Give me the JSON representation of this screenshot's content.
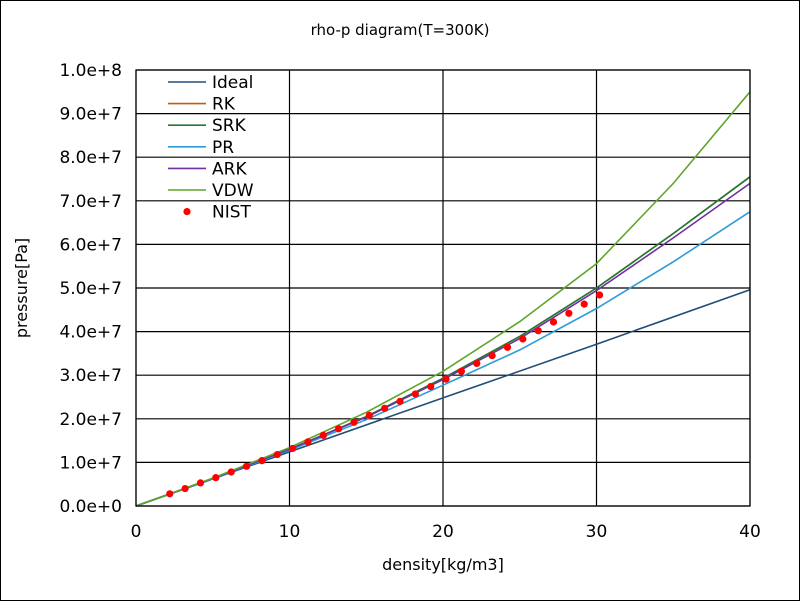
{
  "chart_data": {
    "type": "line",
    "title": "rho-p diagram(T=300K)",
    "xlabel": "density[kg/m3]",
    "ylabel": "pressure[Pa]",
    "xlim": [
      0,
      40
    ],
    "ylim": [
      0,
      100000000
    ],
    "x_ticks": [
      0,
      10,
      20,
      30,
      40
    ],
    "x_tick_labels": [
      "0",
      "10",
      "20",
      "30",
      "40"
    ],
    "y_ticks": [
      0,
      10000000,
      20000000,
      30000000,
      40000000,
      50000000,
      60000000,
      70000000,
      80000000,
      90000000,
      100000000
    ],
    "y_tick_labels": [
      "0.0e+0",
      "1.0e+7",
      "2.0e+7",
      "3.0e+7",
      "4.0e+7",
      "5.0e+7",
      "6.0e+7",
      "7.0e+7",
      "8.0e+7",
      "9.0e+7",
      "1.0e+8"
    ],
    "grid": true,
    "legend_position": "top-left",
    "series": [
      {
        "name": "Ideal",
        "kind": "line",
        "color": "#1f4e79",
        "x": [
          0,
          10,
          20,
          30,
          40
        ],
        "y": [
          0,
          12400000,
          24800000,
          37100000,
          49600000
        ]
      },
      {
        "name": "RK",
        "kind": "line",
        "color": "#c55a11",
        "x": [
          0,
          5,
          10,
          15,
          20,
          25,
          30,
          35,
          40
        ],
        "y": [
          0,
          6300000,
          13000000,
          20500000,
          29300000,
          38900000,
          50000000,
          62500000,
          75500000
        ]
      },
      {
        "name": "SRK",
        "kind": "line",
        "color": "#1e7b34",
        "x": [
          0,
          5,
          10,
          15,
          20,
          25,
          30,
          35,
          40
        ],
        "y": [
          0,
          6300000,
          13000000,
          20500000,
          29300000,
          38900000,
          50000000,
          62500000,
          75500000
        ]
      },
      {
        "name": "PR",
        "kind": "line",
        "color": "#2e9bd6",
        "x": [
          0,
          5,
          10,
          15,
          20,
          25,
          30,
          35,
          40
        ],
        "y": [
          0,
          6200000,
          12800000,
          19800000,
          27700000,
          35800000,
          45300000,
          56000000,
          67500000
        ]
      },
      {
        "name": "ARK",
        "kind": "line",
        "color": "#7030a0",
        "x": [
          0,
          5,
          10,
          15,
          20,
          25,
          30,
          35,
          40
        ],
        "y": [
          0,
          6300000,
          13000000,
          20400000,
          29000000,
          38400000,
          49400000,
          61500000,
          74000000
        ]
      },
      {
        "name": "VDW",
        "kind": "line",
        "color": "#5fa52c",
        "x": [
          0,
          5,
          10,
          15,
          20,
          25,
          30,
          35,
          40
        ],
        "y": [
          0,
          6400000,
          13400000,
          21500000,
          30900000,
          42300000,
          55600000,
          74000000,
          95000000
        ]
      },
      {
        "name": "NIST",
        "kind": "scatter",
        "color": "#ff0000",
        "x": [
          2.2,
          3.2,
          4.2,
          5.2,
          6.2,
          7.2,
          8.2,
          9.2,
          10.2,
          11.2,
          12.2,
          13.2,
          14.2,
          15.2,
          16.2,
          17.2,
          18.2,
          19.2,
          20.2,
          21.2,
          22.2,
          23.2,
          24.2,
          25.2,
          26.2,
          27.2,
          28.2,
          29.2,
          30.2
        ],
        "y": [
          2800000,
          4000000,
          5300000,
          6500000,
          7800000,
          9100000,
          10400000,
          11800000,
          13200000,
          14700000,
          16200000,
          17700000,
          19200000,
          20800000,
          22400000,
          24000000,
          25700000,
          27400000,
          29100000,
          30900000,
          32700000,
          34500000,
          36400000,
          38300000,
          40200000,
          42200000,
          44200000,
          46300000,
          48400000
        ]
      }
    ]
  }
}
